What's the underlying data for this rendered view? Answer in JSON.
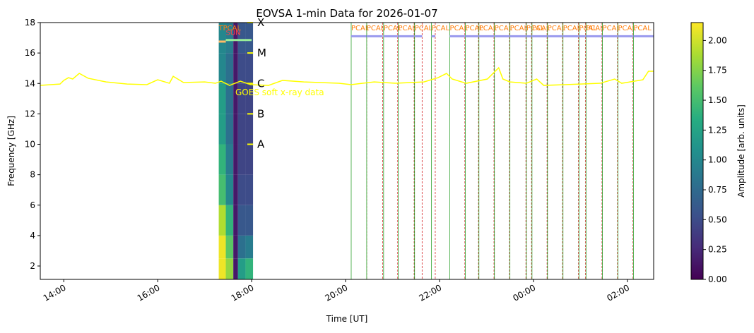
{
  "chart_data": {
    "type": "heatmap",
    "title": "EOVSA 1-min Data for 2026-01-07",
    "xlabel": "Time [UT]",
    "ylabel": "Frequency [GHz]",
    "xlim": [
      13.5,
      26.56
    ],
    "ylim": [
      1.12,
      18
    ],
    "xticks": [
      {
        "value": 14,
        "label": "14:00"
      },
      {
        "value": 16,
        "label": "16:00"
      },
      {
        "value": 18,
        "label": "18:00"
      },
      {
        "value": 20,
        "label": "20:00"
      },
      {
        "value": 22,
        "label": "22:00"
      },
      {
        "value": 24,
        "label": "00:00"
      },
      {
        "value": 26,
        "label": "02:00"
      }
    ],
    "yticks": [
      2,
      4,
      6,
      8,
      10,
      12,
      14,
      16,
      18
    ],
    "heatmap": {
      "x_edges": [
        17.3,
        17.45,
        17.61,
        17.71,
        17.87,
        18.03
      ],
      "y_edges": [
        1.12,
        2.5,
        4,
        6,
        8,
        10,
        12,
        14,
        16,
        18
      ],
      "values": [
        [
          2.1,
          1.8,
          0.15,
          1.2,
          1.4
        ],
        [
          2.1,
          1.6,
          0.15,
          0.8,
          0.9
        ],
        [
          1.9,
          1.4,
          0.15,
          0.6,
          0.6
        ],
        [
          1.5,
          1.0,
          0.15,
          0.5,
          0.5
        ],
        [
          1.4,
          0.9,
          0.15,
          0.45,
          0.45
        ],
        [
          1.2,
          0.8,
          0.15,
          0.45,
          0.45
        ],
        [
          1.2,
          0.8,
          0.15,
          0.45,
          0.45
        ],
        [
          1.0,
          0.8,
          0.15,
          0.5,
          0.5
        ],
        [
          1.0,
          0.9,
          0.15,
          0.6,
          0.6
        ]
      ],
      "colormap": "viridis"
    },
    "colorbar": {
      "label": "Amplitude [arb. units]",
      "lim": [
        0,
        2.15
      ],
      "ticks": [
        {
          "value": 0,
          "label": "0.00"
        },
        {
          "value": 0.25,
          "label": "0.25"
        },
        {
          "value": 0.5,
          "label": "0.50"
        },
        {
          "value": 0.75,
          "label": "0.75"
        },
        {
          "value": 1,
          "label": "1.00"
        },
        {
          "value": 1.25,
          "label": "1.25"
        },
        {
          "value": 1.5,
          "label": "1.50"
        },
        {
          "value": 1.75,
          "label": "1.75"
        },
        {
          "value": 2,
          "label": "2.00"
        }
      ]
    },
    "goes": {
      "name": "GOES soft x-ray data",
      "color": "#ffff00",
      "x": [
        13.5,
        13.92,
        14.0,
        14.1,
        14.19,
        14.33,
        14.52,
        14.9,
        15.35,
        15.77,
        16.0,
        16.25,
        16.33,
        16.55,
        17.0,
        17.23,
        17.35,
        17.53,
        17.76,
        17.98,
        18.36,
        18.66,
        19.11,
        19.86,
        20.12,
        20.61,
        21.06,
        21.67,
        21.97,
        22.15,
        22.27,
        22.57,
        23.02,
        23.26,
        23.35,
        23.5,
        23.85,
        24.07,
        24.22,
        24.67,
        25.42,
        25.73,
        25.88,
        26.33,
        26.45,
        26.56
      ],
      "values": [
        13.87,
        13.96,
        14.2,
        14.38,
        14.29,
        14.66,
        14.34,
        14.1,
        13.96,
        13.92,
        14.24,
        14.01,
        14.47,
        14.06,
        14.1,
        14.01,
        14.15,
        13.87,
        14.15,
        13.92,
        13.87,
        14.2,
        14.1,
        14.01,
        13.92,
        14.1,
        14.01,
        14.1,
        14.38,
        14.66,
        14.29,
        14.01,
        14.29,
        15.03,
        14.29,
        14.1,
        14.01,
        14.29,
        13.87,
        13.92,
        14.01,
        14.29,
        14.01,
        14.24,
        14.8,
        14.8
      ],
      "levels": [
        {
          "label": "X",
          "value": 18
        },
        {
          "label": "M",
          "value": 16
        },
        {
          "label": "C",
          "value": 14
        },
        {
          "label": "B",
          "value": 12
        },
        {
          "label": "A",
          "value": 10
        }
      ]
    },
    "scans": [
      {
        "label": "TPCAL",
        "start": 17.3,
        "end": 17.45,
        "color": "#ff7f0e"
      },
      {
        "label": "SUN",
        "start": 17.45,
        "end": 18.0,
        "color": "#ff4444"
      }
    ],
    "pcal": {
      "label": "PCAL",
      "color": "#ff7f0e",
      "start": [
        20.12,
        20.45,
        20.81,
        21.12,
        21.47,
        21.83,
        22.22,
        22.55,
        22.84,
        23.17,
        23.5,
        23.85,
        23.97,
        24.3,
        24.63,
        24.97,
        25.12,
        25.47,
        25.8,
        26.13
      ],
      "end": [
        20.45,
        20.79,
        21.11,
        21.46,
        21.63,
        21.91,
        22.54,
        22.83,
        23.16,
        23.49,
        23.84,
        23.96,
        24.29,
        24.62,
        24.96,
        25.11,
        25.46,
        25.79,
        26.12,
        26.56
      ]
    }
  }
}
